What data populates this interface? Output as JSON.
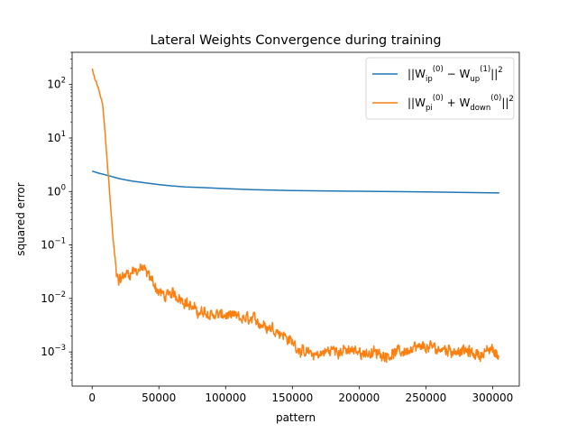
{
  "chart_data": {
    "type": "line",
    "title": "Lateral Weights Convergence during training",
    "xlabel": "pattern",
    "ylabel": "squared error",
    "xlim": [
      -15000,
      320000
    ],
    "ylim": [
      0.00023,
      400
    ],
    "yscale": "log",
    "grid": false,
    "legend_position": "top-right",
    "x_ticks": [
      0,
      50000,
      100000,
      150000,
      200000,
      250000,
      300000
    ],
    "x_tick_labels": [
      "0",
      "50000",
      "100000",
      "150000",
      "200000",
      "250000",
      "300000"
    ],
    "y_ticks": [
      0.001,
      0.01,
      0.1,
      1,
      10,
      100
    ],
    "y_tick_labels": [
      {
        "base": "10",
        "exp": "−3"
      },
      {
        "base": "10",
        "exp": "−2"
      },
      {
        "base": "10",
        "exp": "−1"
      },
      {
        "base": "10",
        "exp": "0"
      },
      {
        "base": "10",
        "exp": "1"
      },
      {
        "base": "10",
        "exp": "2"
      }
    ],
    "series": [
      {
        "name": "||W_ip^(0) − W_up^(1)||^2",
        "legend": {
          "pre": "||W",
          "sub1": "ip",
          "sup1": "(0)",
          "op": " − W",
          "sub2": "up",
          "sup2": "(1)",
          "post": "||",
          "sup3": "2"
        },
        "color": "#1f77b4",
        "noisy": false,
        "x": [
          0,
          5000,
          10000,
          15000,
          20000,
          25000,
          30000,
          40000,
          50000,
          60000,
          70000,
          80000,
          100000,
          120000,
          150000,
          200000,
          250000,
          305000
        ],
        "y": [
          2.4,
          2.2,
          2.05,
          1.9,
          1.75,
          1.65,
          1.57,
          1.45,
          1.35,
          1.27,
          1.22,
          1.19,
          1.13,
          1.08,
          1.04,
          1.01,
          0.98,
          0.94
        ]
      },
      {
        "name": "||W_pi^(0) + W_down^(0)||^2",
        "legend": {
          "pre": "||W",
          "sub1": "pi",
          "sup1": "(0)",
          "op": " + W",
          "sub2": "down",
          "sup2": "(0)",
          "post": "||",
          "sup3": "2"
        },
        "color": "#ff7f0e",
        "noisy": true,
        "x": [
          0,
          1000,
          3000,
          5000,
          8000,
          10000,
          13000,
          16000,
          18000,
          20000,
          25000,
          30000,
          35000,
          38000,
          40000,
          45000,
          50000,
          55000,
          60000,
          65000,
          70000,
          75000,
          80000,
          90000,
          100000,
          110000,
          120000,
          130000,
          140000,
          150000,
          160000,
          170000,
          180000,
          200000,
          220000,
          240000,
          250000,
          270000,
          290000,
          300000,
          305000
        ],
        "y": [
          200,
          150,
          110,
          80,
          40,
          10,
          1.0,
          0.1,
          0.03,
          0.022,
          0.028,
          0.032,
          0.035,
          0.036,
          0.03,
          0.022,
          0.013,
          0.011,
          0.012,
          0.011,
          0.009,
          0.0065,
          0.0055,
          0.005,
          0.0048,
          0.0042,
          0.004,
          0.0032,
          0.0025,
          0.0015,
          0.0009,
          0.0009,
          0.0011,
          0.001,
          0.0009,
          0.0011,
          0.0012,
          0.0011,
          0.0009,
          0.0011,
          0.0008
        ]
      }
    ]
  }
}
